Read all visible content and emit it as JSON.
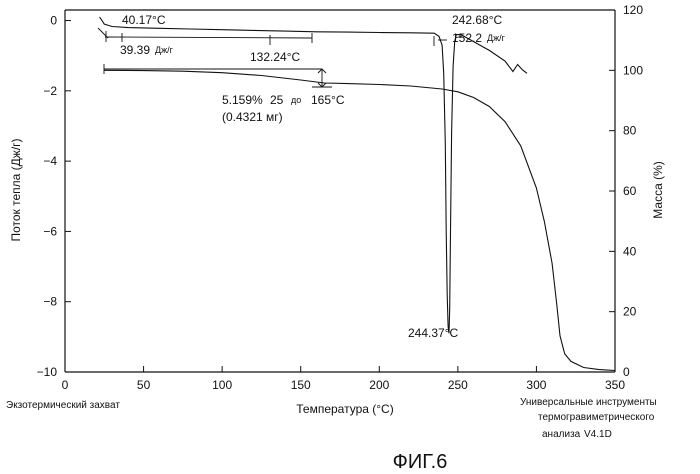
{
  "chart_data": {
    "type": "line",
    "xlabel": "Температура (°C)",
    "ylabel_left": "Поток тепла (Дж/г)",
    "ylabel_right": "Масса (%)",
    "xlim": [
      0,
      350
    ],
    "ylim_left": [
      -10,
      0.3
    ],
    "ylim_right": [
      0,
      120
    ],
    "x_ticks": [
      0,
      50,
      100,
      150,
      200,
      250,
      300,
      350
    ],
    "y_ticks_left": [
      0,
      -2,
      -4,
      -6,
      -8,
      -10
    ],
    "y_ticks_right": [
      120,
      100,
      80,
      60,
      40,
      20,
      0
    ],
    "series": [
      {
        "axis": "left",
        "x": [
          22,
          25,
          30,
          40,
          60,
          80,
          100,
          120,
          140,
          160,
          180,
          200,
          220,
          235,
          238,
          240,
          241,
          242,
          242.6,
          243.2,
          243.8,
          244.37,
          244.8,
          245.3,
          246,
          247,
          248,
          249,
          252,
          260,
          270,
          280,
          285,
          288,
          291,
          294
        ],
        "y": [
          0.1,
          -0.1,
          -0.17,
          -0.2,
          -0.22,
          -0.24,
          -0.26,
          -0.28,
          -0.3,
          -0.32,
          -0.33,
          -0.34,
          -0.35,
          -0.36,
          -0.45,
          -0.7,
          -1.5,
          -3.5,
          -6.0,
          -7.8,
          -8.7,
          -8.9,
          -8.2,
          -6.0,
          -3.2,
          -1.3,
          -0.6,
          -0.4,
          -0.4,
          -0.6,
          -0.85,
          -1.15,
          -1.45,
          -1.25,
          -1.4,
          -1.5
        ]
      },
      {
        "axis": "right",
        "x": [
          25,
          50,
          75,
          100,
          125,
          150,
          165,
          180,
          200,
          220,
          240,
          250,
          260,
          270,
          280,
          290,
          300,
          305,
          310,
          313,
          315,
          318,
          322,
          330,
          340,
          350
        ],
        "y": [
          100,
          99.9,
          99.7,
          99.2,
          98.3,
          96.8,
          95.8,
          95.6,
          95.3,
          94.8,
          93.8,
          92.9,
          91.0,
          88.0,
          83.0,
          75.0,
          61.0,
          50.0,
          36.0,
          22.0,
          12.0,
          6.0,
          3.5,
          1.5,
          0.8,
          0.5
        ]
      }
    ],
    "annotations": {
      "onset_temp": "40.17°C",
      "enthalpy_1": "39.39",
      "enthalpy_unit_1": "Дж/г",
      "end_temp": "132.24°C",
      "peak_onset": "242.68°C",
      "enthalpy_2": "152.2",
      "enthalpy_unit_2": "Дж/г",
      "mass_loss_line1a": "5.159%",
      "mass_loss_line1b": "25",
      "mass_loss_line1c": "до",
      "mass_loss_line1d": "165°C",
      "mass_loss_line2": "(0.4321 мг)",
      "peak_temp": "244.37°C"
    }
  },
  "footer": {
    "left": "Экзотермический захват",
    "right_line1": "Универсальные инструменты",
    "right_line2": "термогравиметрического",
    "right_line3a": "анализа",
    "right_line3b": "V4.1D"
  },
  "figure_label": "ФИГ.6"
}
